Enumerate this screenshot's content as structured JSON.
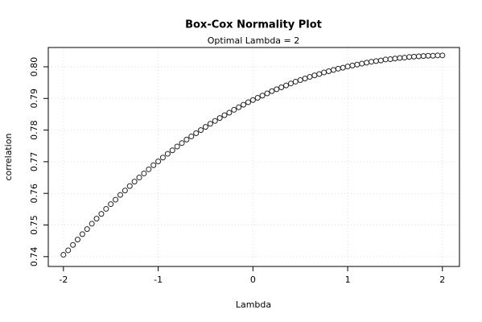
{
  "chart_data": {
    "type": "scatter",
    "title": "Box-Cox Normality Plot",
    "subtitle": "Optimal Lambda = 2",
    "x_label": "Lambda",
    "y_label": "correlation",
    "color": "#222222",
    "grid": true,
    "xlim": [
      -2.16,
      2.18
    ],
    "ylim": [
      0.7369,
      0.8061
    ],
    "xticks": [
      -2,
      -1,
      0,
      1,
      2
    ],
    "yticks": [
      0.74,
      0.75,
      0.76,
      0.77,
      0.78,
      0.79,
      {
        "value": 0.8,
        "label": "0.80"
      }
    ],
    "x": [
      -2,
      -1.95,
      -1.9,
      -1.85,
      -1.8,
      -1.75,
      -1.7,
      -1.65,
      -1.6,
      -1.55,
      -1.5,
      -1.45,
      -1.4,
      -1.35,
      -1.3,
      -1.25,
      -1.2,
      -1.15,
      -1.1,
      -1.05,
      -1,
      -0.95,
      -0.9,
      -0.85,
      -0.8,
      -0.75,
      -0.7,
      -0.65,
      -0.6,
      -0.55,
      -0.5,
      -0.45,
      -0.4,
      -0.35,
      -0.3,
      -0.25,
      -0.2,
      -0.15,
      -0.1,
      -0.05,
      0,
      0.05,
      0.1,
      0.15,
      0.2,
      0.25,
      0.3,
      0.35,
      0.4,
      0.45,
      0.5,
      0.55,
      0.6,
      0.65,
      0.7,
      0.75,
      0.8,
      0.85,
      0.9,
      0.95,
      1,
      1.05,
      1.1,
      1.15,
      1.2,
      1.25,
      1.3,
      1.35,
      1.4,
      1.45,
      1.5,
      1.55,
      1.6,
      1.65,
      1.7,
      1.75,
      1.8,
      1.85,
      1.9,
      1.95,
      2
    ],
    "values": [
      0.7406,
      0.742,
      0.7437,
      0.7454,
      0.7471,
      0.7487,
      0.7504,
      0.752,
      0.7535,
      0.7551,
      0.7566,
      0.758,
      0.7595,
      0.7609,
      0.7623,
      0.7637,
      0.765,
      0.7663,
      0.7676,
      0.7689,
      0.7701,
      0.7713,
      0.7725,
      0.7736,
      0.7748,
      0.7759,
      0.777,
      0.778,
      0.779,
      0.78,
      0.781,
      0.782,
      0.7829,
      0.7838,
      0.7847,
      0.7855,
      0.7864,
      0.7872,
      0.788,
      0.7888,
      0.7895,
      0.7902,
      0.7909,
      0.7916,
      0.7923,
      0.7929,
      0.7935,
      0.7941,
      0.7947,
      0.7953,
      0.7958,
      0.7963,
      0.7968,
      0.7973,
      0.7977,
      0.7982,
      0.7986,
      0.799,
      0.7994,
      0.7997,
      0.8001,
      0.8004,
      0.8007,
      0.801,
      0.8013,
      0.8016,
      0.8018,
      0.802,
      0.8023,
      0.8024,
      0.8026,
      0.8028,
      0.8029,
      0.8031,
      0.8032,
      0.8033,
      0.8034,
      0.8035,
      0.8035,
      0.8036,
      0.8036
    ]
  }
}
